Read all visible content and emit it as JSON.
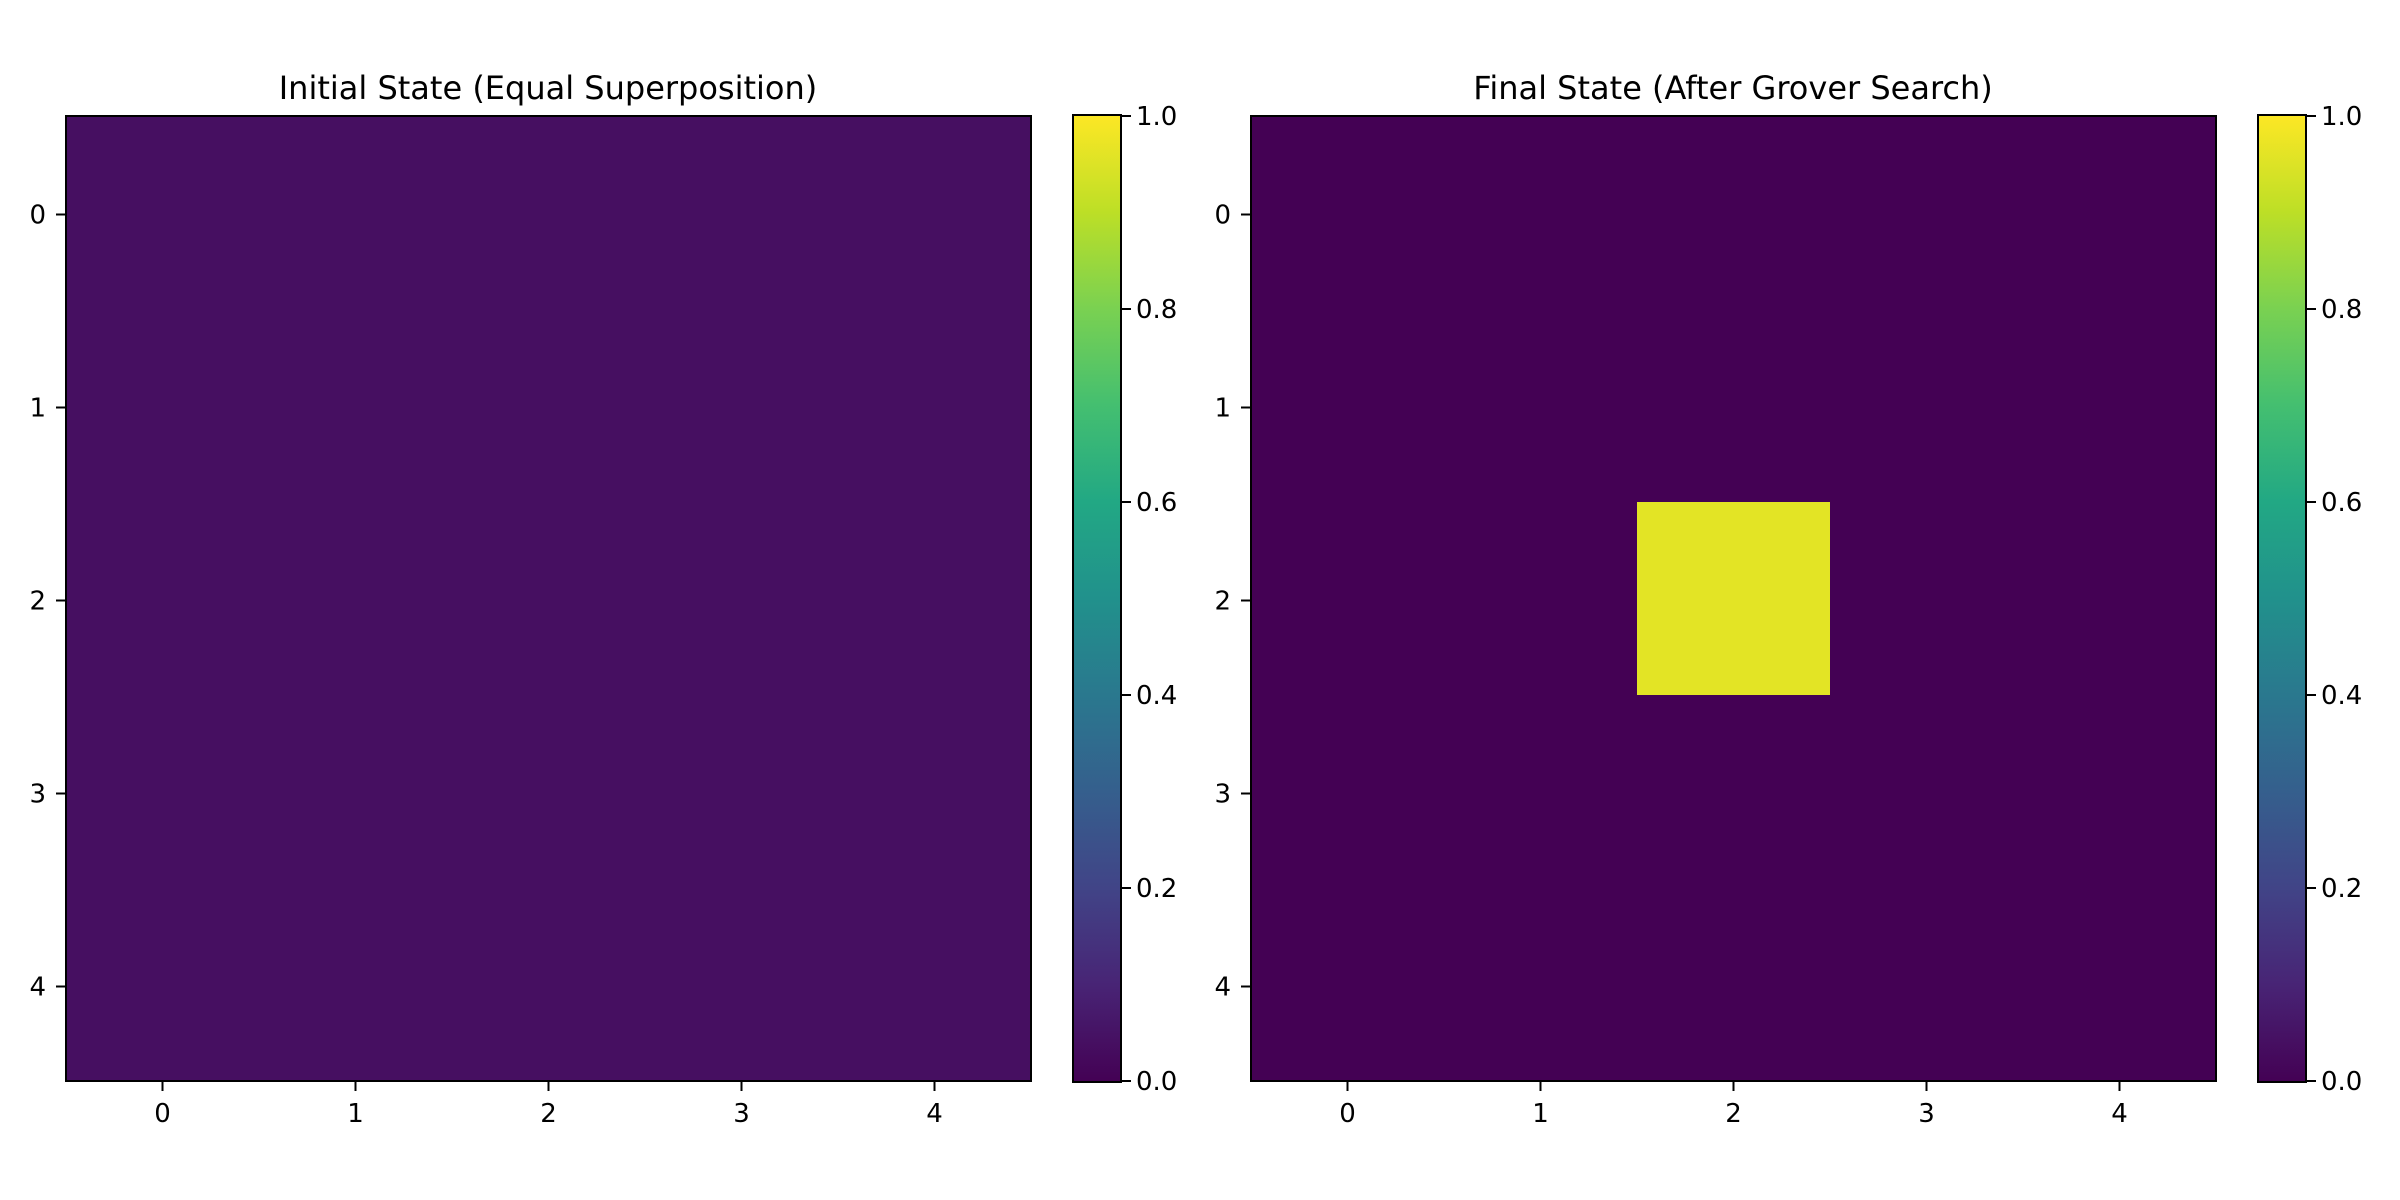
{
  "chart_data": [
    {
      "type": "heatmap",
      "title": "Initial State (Equal Superposition)",
      "xlabel": "",
      "ylabel": "",
      "x_ticks": [
        "0",
        "1",
        "2",
        "3",
        "4"
      ],
      "y_ticks": [
        "0",
        "1",
        "2",
        "3",
        "4"
      ],
      "values": [
        [
          0.04,
          0.04,
          0.04,
          0.04,
          0.04
        ],
        [
          0.04,
          0.04,
          0.04,
          0.04,
          0.04
        ],
        [
          0.04,
          0.04,
          0.04,
          0.04,
          0.04
        ],
        [
          0.04,
          0.04,
          0.04,
          0.04,
          0.04
        ],
        [
          0.04,
          0.04,
          0.04,
          0.04,
          0.04
        ]
      ],
      "colorbar": {
        "colormap": "viridis",
        "range": [
          0.0,
          1.0
        ],
        "tick_labels": [
          "0.0",
          "0.2",
          "0.4",
          "0.6",
          "0.8",
          "1.0"
        ]
      }
    },
    {
      "type": "heatmap",
      "title": "Final State (After Grover Search)",
      "xlabel": "",
      "ylabel": "",
      "x_ticks": [
        "0",
        "1",
        "2",
        "3",
        "4"
      ],
      "y_ticks": [
        "0",
        "1",
        "2",
        "3",
        "4"
      ],
      "values": [
        [
          0.0,
          0.0,
          0.0,
          0.0,
          0.0
        ],
        [
          0.0,
          0.0,
          0.0,
          0.0,
          0.0
        ],
        [
          0.0,
          0.0,
          0.96,
          0.0,
          0.0
        ],
        [
          0.0,
          0.0,
          0.0,
          0.0,
          0.0
        ],
        [
          0.0,
          0.0,
          0.0,
          0.0,
          0.0
        ]
      ],
      "colorbar": {
        "colormap": "viridis",
        "range": [
          0.0,
          1.0
        ],
        "tick_labels": [
          "0.0",
          "0.2",
          "0.4",
          "0.6",
          "0.8",
          "1.0"
        ]
      }
    }
  ]
}
